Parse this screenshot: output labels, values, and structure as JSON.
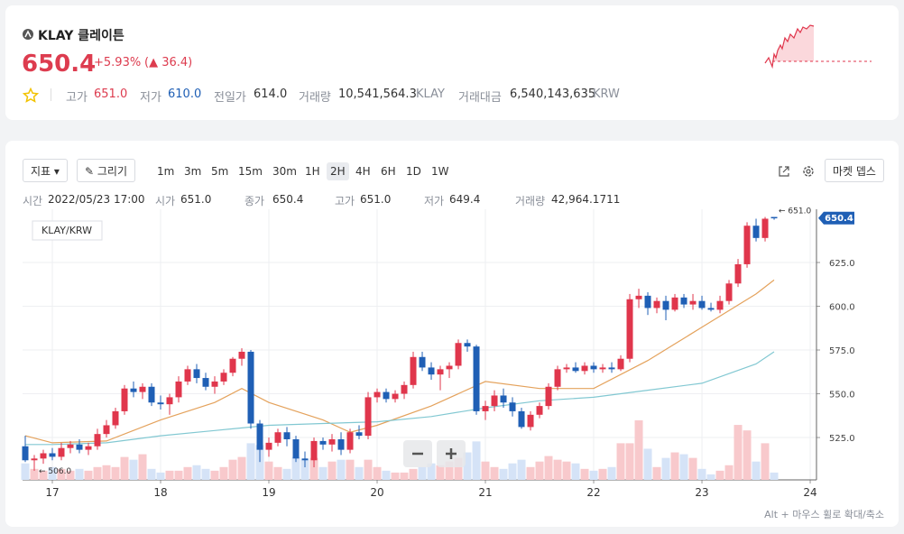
{
  "header": {
    "symbol": "KLAY 클레이튼",
    "price": "650.4",
    "change_rate": "+5.93%",
    "change": "(▲ 36.4)",
    "stats": [
      {
        "label": "고가",
        "value": "651.0"
      },
      {
        "label": "저가",
        "value": "610.0"
      },
      {
        "label": "전일가",
        "value": "614.0"
      },
      {
        "label": "거래량",
        "value": "10,541,564.3",
        "unit": "KLAY"
      },
      {
        "label": "거래대금",
        "value": "6,540,143,635",
        "unit": "KRW"
      }
    ]
  },
  "toolbar": {
    "indicator": "지표",
    "draw": "그리기",
    "intervals": [
      "1m",
      "3m",
      "5m",
      "15m",
      "30m",
      "1H",
      "2H",
      "4H",
      "6H",
      "1D",
      "1W"
    ],
    "selected": "2H",
    "market_depth": "마켓 뎁스"
  },
  "info_bar": [
    {
      "label": "시간",
      "value": "2022/05/23 17:00"
    },
    {
      "label": "시가",
      "value": "651.0"
    },
    {
      "label": "종가",
      "value": "650.4"
    },
    {
      "label": "고가",
      "value": "651.0"
    },
    {
      "label": "저가",
      "value": "649.4"
    },
    {
      "label": "거래량",
      "value": "42,964.1711"
    }
  ],
  "chart_data": {
    "type": "candlestick",
    "title": "KLAY/KRW",
    "x": [
      16.75,
      16.8333,
      16.9167,
      17,
      17.0833,
      17.1667,
      17.25,
      17.3333,
      17.4167,
      17.5,
      17.5833,
      17.6667,
      17.75,
      17.8333,
      17.9167,
      18,
      18.0833,
      18.1667,
      18.25,
      18.3333,
      18.4167,
      18.5,
      18.5833,
      18.6667,
      18.75,
      18.8333,
      18.9167,
      19,
      19.0833,
      19.1667,
      19.25,
      19.3333,
      19.4167,
      19.5,
      19.5833,
      19.6667,
      19.75,
      19.8333,
      19.9167,
      20,
      20.0833,
      20.1667,
      20.25,
      20.3333,
      20.4167,
      20.5,
      20.5833,
      20.6667,
      20.75,
      20.8333,
      20.9167,
      21,
      21.0833,
      21.1667,
      21.25,
      21.3333,
      21.4167,
      21.5,
      21.5833,
      21.6667,
      21.75,
      21.8333,
      21.9167,
      22,
      22.0833,
      22.1667,
      22.25,
      22.3333,
      22.4167,
      22.5,
      22.5833,
      22.6667,
      22.75,
      22.8333,
      22.9167,
      23,
      23.0833,
      23.1667,
      23.25,
      23.3333,
      23.4167,
      23.5,
      23.5833,
      23.6667
    ],
    "open": [
      520,
      512,
      513,
      516,
      514,
      519,
      521,
      518,
      520,
      527,
      532,
      540,
      553,
      551,
      554,
      545,
      544,
      548,
      557,
      564,
      559,
      554,
      557,
      562,
      570,
      574,
      533,
      518,
      522,
      528,
      524,
      513,
      512,
      523,
      521,
      524,
      518,
      528,
      526,
      548,
      551,
      547,
      550,
      555,
      571,
      565,
      561,
      564,
      566,
      579,
      577,
      540,
      543,
      549,
      545,
      540,
      531,
      538,
      543,
      554,
      564,
      565,
      563,
      566,
      564,
      565,
      564,
      570,
      604,
      606,
      599,
      603,
      598,
      605,
      601,
      603,
      599,
      598,
      603,
      613,
      624,
      646,
      639,
      651
    ],
    "high": [
      526,
      515,
      518,
      519,
      522,
      523,
      524,
      522,
      530,
      535,
      542,
      555,
      557,
      556,
      556,
      549,
      550,
      560,
      566,
      567,
      562,
      560,
      564,
      571,
      576,
      575,
      535,
      525,
      530,
      531,
      526,
      517,
      525,
      525,
      527,
      528,
      530,
      532,
      551,
      553,
      553,
      552,
      557,
      574,
      574,
      568,
      566,
      568,
      581,
      581,
      578,
      546,
      552,
      553,
      548,
      542,
      540,
      545,
      556,
      566,
      567,
      568,
      568,
      568,
      567,
      568,
      572,
      607,
      610,
      608,
      605,
      606,
      607,
      607,
      607,
      606,
      602,
      606,
      615,
      627,
      648,
      650,
      651,
      651
    ],
    "low": [
      511,
      506,
      510,
      512,
      512,
      516,
      516,
      515,
      518,
      525,
      530,
      538,
      548,
      547,
      543,
      541,
      538,
      545,
      555,
      556,
      552,
      550,
      555,
      560,
      566,
      530,
      511,
      514,
      520,
      520,
      511,
      508,
      508,
      518,
      517,
      515,
      516,
      524,
      524,
      545,
      545,
      545,
      547,
      553,
      563,
      558,
      552,
      559,
      564,
      574,
      538,
      535,
      540,
      542,
      537,
      530,
      529,
      536,
      541,
      552,
      562,
      562,
      561,
      562,
      562,
      562,
      563,
      568,
      599,
      595,
      596,
      592,
      597,
      599,
      598,
      598,
      597,
      596,
      601,
      611,
      622,
      637,
      637,
      649.4
    ],
    "close": [
      512,
      513,
      516,
      514,
      519,
      521,
      518,
      520,
      527,
      532,
      540,
      553,
      551,
      554,
      545,
      544,
      548,
      557,
      564,
      559,
      554,
      557,
      562,
      570,
      574,
      533,
      518,
      522,
      528,
      524,
      513,
      512,
      523,
      521,
      524,
      518,
      528,
      526,
      548,
      551,
      547,
      550,
      555,
      571,
      565,
      561,
      564,
      566,
      579,
      577,
      540,
      543,
      549,
      545,
      540,
      531,
      538,
      543,
      554,
      564,
      565,
      563,
      566,
      564,
      565,
      564,
      570,
      604,
      606,
      599,
      603,
      598,
      605,
      601,
      603,
      599,
      598,
      603,
      613,
      624,
      646,
      639,
      650,
      650.4
    ],
    "volume": [
      18,
      12,
      10,
      14,
      12,
      10,
      12,
      10,
      14,
      16,
      14,
      25,
      22,
      28,
      12,
      8,
      10,
      10,
      14,
      16,
      12,
      10,
      14,
      22,
      25,
      40,
      38,
      20,
      14,
      12,
      25,
      22,
      24,
      14,
      20,
      22,
      22,
      14,
      22,
      14,
      10,
      8,
      8,
      12,
      14,
      18,
      16,
      20,
      24,
      30,
      42,
      20,
      14,
      12,
      18,
      22,
      14,
      20,
      26,
      22,
      20,
      18,
      12,
      10,
      12,
      14,
      40,
      40,
      65,
      34,
      14,
      24,
      30,
      28,
      24,
      12,
      6,
      10,
      16,
      60,
      54,
      20,
      40,
      8
    ],
    "up_color": "#e0364c",
    "down_color": "#1f5fb5",
    "up_volume_color": "#f8c9cc",
    "down_volume_color": "#d5e3f7",
    "lines": [
      {
        "color": "#e4a25c",
        "x": [
          16.75,
          17,
          17.5,
          18,
          18.5,
          18.75,
          19,
          19.5,
          19.75,
          20,
          20.5,
          21,
          21.5,
          22,
          22.5,
          23,
          23.5,
          23.6667
        ],
        "values": [
          526,
          522,
          523,
          535,
          545,
          553,
          545,
          535,
          528,
          532,
          543,
          557,
          553,
          553,
          569,
          588,
          607,
          615
        ]
      },
      {
        "color": "#82c8d2",
        "x": [
          16.75,
          17,
          17.5,
          18,
          18.5,
          19,
          19.5,
          20,
          20.5,
          21,
          21.5,
          22,
          22.5,
          23,
          23.5,
          23.6667
        ],
        "values": [
          521,
          521,
          522,
          526,
          529,
          532,
          533,
          534,
          537,
          542,
          546,
          548,
          552,
          556,
          567,
          574
        ]
      }
    ],
    "xlim": [
      16.725,
      24.058
    ],
    "xticks": [
      17,
      18,
      19,
      20,
      21,
      22,
      23,
      24
    ],
    "ylim": [
      500.8,
      655.4
    ],
    "yticks": [
      {
        "value": 525,
        "label": "525.0"
      },
      {
        "value": 550,
        "label": "550.0"
      },
      {
        "value": 575,
        "label": "575.0"
      },
      {
        "value": 600,
        "label": "600.0"
      },
      {
        "value": 625,
        "label": "625.0"
      }
    ],
    "grid": true,
    "last_price": 650.4,
    "high_marker": {
      "x": 23.6667,
      "value": 651,
      "label": "← 651.0"
    },
    "low_marker": {
      "x": 16.8333,
      "value": 506,
      "label": "← 506.0"
    }
  },
  "footer": {
    "hint": "Alt + 마우스 휠로 확대/축소"
  }
}
